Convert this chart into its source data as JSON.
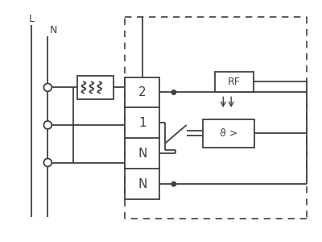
{
  "bg_color": "#ffffff",
  "line_color": "#404040",
  "fig_width": 4.0,
  "fig_height": 3.0,
  "dpi": 100,
  "label_L": "L",
  "label_N": "N",
  "label_2": "2",
  "label_1": "1",
  "label_N1": "N",
  "label_N2": "N",
  "label_RF": "RF",
  "label_theta": "ϑ >"
}
